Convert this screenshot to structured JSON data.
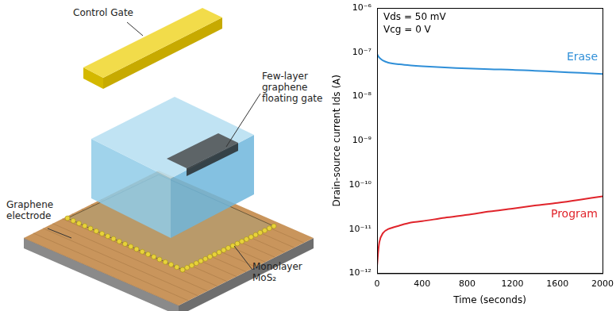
{
  "chart_data": {
    "type": "line",
    "x_label": "Time (seconds)",
    "y_label": "Drain-source current Ids (A)",
    "annotations": [
      "Vds = 50 mV",
      "Vcg = 0 V"
    ],
    "log": "y",
    "grid": false,
    "xlim": [
      0,
      2000
    ],
    "xticks": [
      0,
      400,
      800,
      1200,
      1600,
      2000
    ],
    "ylim": [
      1e-12,
      1e-06
    ],
    "yticks": [
      {
        "value": 1e-12,
        "label": "10⁻¹²"
      },
      {
        "value": 1e-11,
        "label": "10⁻¹¹"
      },
      {
        "value": 1e-10,
        "label": "10⁻¹⁰"
      },
      {
        "value": 1e-09,
        "label": "10⁻⁹"
      },
      {
        "value": 1e-08,
        "label": "10⁻⁸"
      },
      {
        "value": 1e-07,
        "label": "10⁻⁷"
      },
      {
        "value": 1e-06,
        "label": "10⁻⁶"
      }
    ],
    "x": [
      0,
      20,
      50,
      100,
      200,
      300,
      400,
      600,
      800,
      1000,
      1200,
      1400,
      1600,
      1800,
      2000
    ],
    "series": [
      {
        "name": "Erase",
        "color": "#2f8fd8",
        "values": [
          9e-08,
          7.5e-08,
          6.5e-08,
          5.8e-08,
          5.3e-08,
          5e-08,
          4.8e-08,
          4.5e-08,
          4.3e-08,
          4.1e-08,
          4e-08,
          3.8e-08,
          3.6e-08,
          3.4e-08,
          3.2e-08
        ]
      },
      {
        "name": "Program",
        "color": "#e0242b",
        "values": [
          1.5e-12,
          5e-12,
          8e-12,
          1e-11,
          1.2e-11,
          1.4e-11,
          1.5e-11,
          1.8e-11,
          2.1e-11,
          2.5e-11,
          2.9e-11,
          3.4e-11,
          3.9e-11,
          4.6e-11,
          5.5e-11
        ]
      }
    ]
  },
  "diagram": {
    "labels": [
      {
        "lines": [
          "Control Gate"
        ]
      },
      {
        "lines": [
          "Few-layer",
          "graphene",
          "floating gate"
        ]
      },
      {
        "lines": [
          "Graphene",
          "electrode"
        ]
      },
      {
        "lines": [
          "Monolayer",
          "MoS₂"
        ]
      }
    ]
  }
}
